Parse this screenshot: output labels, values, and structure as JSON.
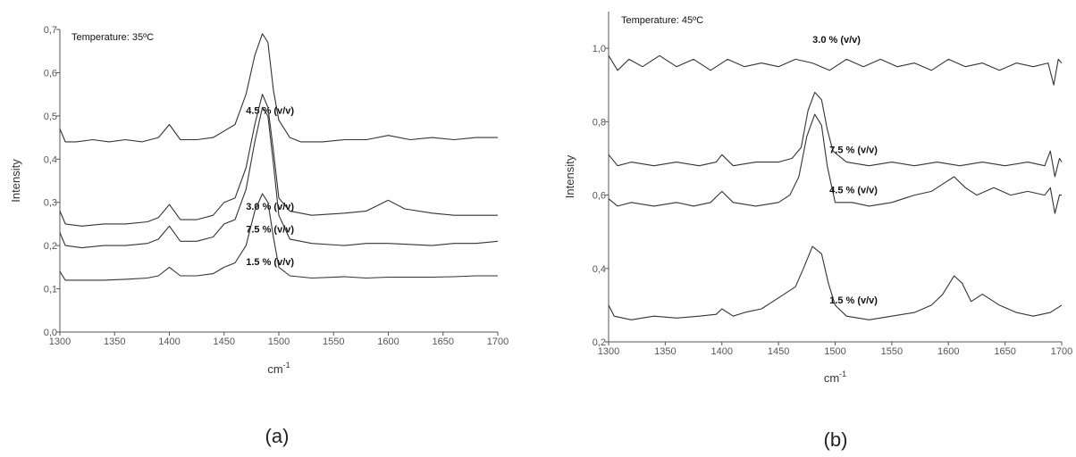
{
  "chart_data": [
    {
      "type": "line",
      "annotation": "Temperature: 35ºC",
      "xlabel": "cm",
      "xlabel_superscript": "-1",
      "ylabel": "Intensity",
      "caption": "(a)",
      "xlim": [
        1300,
        1700
      ],
      "ylim": [
        0.0,
        0.7
      ],
      "xticks": [
        "1300",
        "1350",
        "1400",
        "1450",
        "1500",
        "1550",
        "1600",
        "1650",
        "1700"
      ],
      "yticks": [
        "0,0",
        "0,1",
        "0,2",
        "0,3",
        "0,4",
        "0,5",
        "0,6",
        "0,7"
      ],
      "grid": false,
      "series": [
        {
          "name": "4.5 % (v/v)",
          "label_at": [
            1470,
            0.505
          ],
          "points": [
            [
              1300,
              0.47
            ],
            [
              1305,
              0.44
            ],
            [
              1315,
              0.44
            ],
            [
              1330,
              0.445
            ],
            [
              1345,
              0.44
            ],
            [
              1360,
              0.445
            ],
            [
              1375,
              0.44
            ],
            [
              1390,
              0.45
            ],
            [
              1400,
              0.48
            ],
            [
              1410,
              0.445
            ],
            [
              1425,
              0.445
            ],
            [
              1440,
              0.45
            ],
            [
              1450,
              0.465
            ],
            [
              1460,
              0.48
            ],
            [
              1470,
              0.55
            ],
            [
              1478,
              0.64
            ],
            [
              1485,
              0.69
            ],
            [
              1490,
              0.67
            ],
            [
              1495,
              0.56
            ],
            [
              1500,
              0.49
            ],
            [
              1510,
              0.45
            ],
            [
              1520,
              0.44
            ],
            [
              1540,
              0.44
            ],
            [
              1560,
              0.445
            ],
            [
              1580,
              0.445
            ],
            [
              1600,
              0.455
            ],
            [
              1620,
              0.445
            ],
            [
              1640,
              0.45
            ],
            [
              1660,
              0.445
            ],
            [
              1680,
              0.45
            ],
            [
              1700,
              0.45
            ]
          ]
        },
        {
          "name": "3.0 % (v/v)",
          "label_at": [
            1470,
            0.283
          ],
          "points": [
            [
              1300,
              0.28
            ],
            [
              1305,
              0.25
            ],
            [
              1320,
              0.245
            ],
            [
              1340,
              0.25
            ],
            [
              1360,
              0.25
            ],
            [
              1380,
              0.255
            ],
            [
              1390,
              0.265
            ],
            [
              1400,
              0.295
            ],
            [
              1410,
              0.26
            ],
            [
              1425,
              0.26
            ],
            [
              1440,
              0.27
            ],
            [
              1450,
              0.3
            ],
            [
              1460,
              0.31
            ],
            [
              1470,
              0.38
            ],
            [
              1478,
              0.48
            ],
            [
              1485,
              0.55
            ],
            [
              1490,
              0.52
            ],
            [
              1495,
              0.42
            ],
            [
              1500,
              0.31
            ],
            [
              1510,
              0.28
            ],
            [
              1530,
              0.27
            ],
            [
              1560,
              0.275
            ],
            [
              1580,
              0.28
            ],
            [
              1600,
              0.305
            ],
            [
              1615,
              0.285
            ],
            [
              1640,
              0.275
            ],
            [
              1660,
              0.27
            ],
            [
              1680,
              0.27
            ],
            [
              1700,
              0.27
            ]
          ]
        },
        {
          "name": "7.5 % (v/v)",
          "label_at": [
            1470,
            0.23
          ],
          "points": [
            [
              1300,
              0.23
            ],
            [
              1305,
              0.2
            ],
            [
              1320,
              0.195
            ],
            [
              1340,
              0.2
            ],
            [
              1360,
              0.2
            ],
            [
              1380,
              0.205
            ],
            [
              1390,
              0.215
            ],
            [
              1400,
              0.245
            ],
            [
              1410,
              0.21
            ],
            [
              1425,
              0.21
            ],
            [
              1440,
              0.22
            ],
            [
              1450,
              0.25
            ],
            [
              1460,
              0.26
            ],
            [
              1470,
              0.33
            ],
            [
              1478,
              0.44
            ],
            [
              1485,
              0.52
            ],
            [
              1490,
              0.5
            ],
            [
              1495,
              0.39
            ],
            [
              1500,
              0.27
            ],
            [
              1510,
              0.215
            ],
            [
              1530,
              0.205
            ],
            [
              1560,
              0.2
            ],
            [
              1580,
              0.205
            ],
            [
              1600,
              0.205
            ],
            [
              1640,
              0.2
            ],
            [
              1660,
              0.205
            ],
            [
              1680,
              0.205
            ],
            [
              1700,
              0.21
            ]
          ]
        },
        {
          "name": "1.5 % (v/v)",
          "label_at": [
            1470,
            0.155
          ],
          "points": [
            [
              1300,
              0.14
            ],
            [
              1305,
              0.12
            ],
            [
              1320,
              0.12
            ],
            [
              1340,
              0.12
            ],
            [
              1360,
              0.122
            ],
            [
              1380,
              0.125
            ],
            [
              1390,
              0.13
            ],
            [
              1400,
              0.15
            ],
            [
              1410,
              0.13
            ],
            [
              1425,
              0.13
            ],
            [
              1440,
              0.135
            ],
            [
              1450,
              0.15
            ],
            [
              1460,
              0.16
            ],
            [
              1470,
              0.2
            ],
            [
              1478,
              0.28
            ],
            [
              1485,
              0.32
            ],
            [
              1490,
              0.3
            ],
            [
              1495,
              0.22
            ],
            [
              1500,
              0.15
            ],
            [
              1510,
              0.13
            ],
            [
              1530,
              0.125
            ],
            [
              1560,
              0.128
            ],
            [
              1580,
              0.125
            ],
            [
              1600,
              0.127
            ],
            [
              1640,
              0.127
            ],
            [
              1660,
              0.128
            ],
            [
              1680,
              0.13
            ],
            [
              1700,
              0.13
            ]
          ]
        }
      ]
    },
    {
      "type": "line",
      "annotation": "Temperature: 45ºC",
      "xlabel": "cm",
      "xlabel_superscript": "-1",
      "ylabel": "Intensity",
      "caption": "(b)",
      "xlim": [
        1300,
        1700
      ],
      "ylim": [
        0.2,
        1.1
      ],
      "xticks": [
        "1300",
        "1350",
        "1400",
        "1450",
        "1500",
        "1550",
        "1600",
        "1650",
        "1700"
      ],
      "yticks": [
        "0,2",
        "0,4",
        "0,6",
        "0,8",
        "1,0"
      ],
      "grid": false,
      "series": [
        {
          "name": "3.0 % (v/v)",
          "label_at": [
            1480,
            1.015
          ],
          "points": [
            [
              1300,
              0.98
            ],
            [
              1308,
              0.94
            ],
            [
              1318,
              0.97
            ],
            [
              1330,
              0.95
            ],
            [
              1345,
              0.98
            ],
            [
              1360,
              0.95
            ],
            [
              1375,
              0.97
            ],
            [
              1390,
              0.94
            ],
            [
              1405,
              0.97
            ],
            [
              1420,
              0.95
            ],
            [
              1435,
              0.96
            ],
            [
              1450,
              0.95
            ],
            [
              1465,
              0.97
            ],
            [
              1480,
              0.96
            ],
            [
              1495,
              0.94
            ],
            [
              1510,
              0.97
            ],
            [
              1525,
              0.95
            ],
            [
              1540,
              0.97
            ],
            [
              1555,
              0.95
            ],
            [
              1570,
              0.96
            ],
            [
              1585,
              0.94
            ],
            [
              1600,
              0.97
            ],
            [
              1615,
              0.95
            ],
            [
              1630,
              0.96
            ],
            [
              1645,
              0.94
            ],
            [
              1660,
              0.96
            ],
            [
              1675,
              0.95
            ],
            [
              1688,
              0.96
            ],
            [
              1693,
              0.9
            ],
            [
              1697,
              0.97
            ],
            [
              1700,
              0.96
            ]
          ]
        },
        {
          "name": "7.5 % (v/v)",
          "label_at": [
            1495,
            0.715
          ],
          "points": [
            [
              1300,
              0.71
            ],
            [
              1308,
              0.68
            ],
            [
              1320,
              0.69
            ],
            [
              1340,
              0.68
            ],
            [
              1360,
              0.69
            ],
            [
              1380,
              0.68
            ],
            [
              1395,
              0.69
            ],
            [
              1400,
              0.71
            ],
            [
              1410,
              0.68
            ],
            [
              1430,
              0.69
            ],
            [
              1450,
              0.69
            ],
            [
              1462,
              0.7
            ],
            [
              1470,
              0.73
            ],
            [
              1476,
              0.83
            ],
            [
              1482,
              0.88
            ],
            [
              1488,
              0.86
            ],
            [
              1493,
              0.78
            ],
            [
              1498,
              0.72
            ],
            [
              1510,
              0.69
            ],
            [
              1530,
              0.68
            ],
            [
              1550,
              0.69
            ],
            [
              1570,
              0.68
            ],
            [
              1590,
              0.69
            ],
            [
              1610,
              0.68
            ],
            [
              1630,
              0.69
            ],
            [
              1650,
              0.68
            ],
            [
              1670,
              0.69
            ],
            [
              1685,
              0.68
            ],
            [
              1690,
              0.72
            ],
            [
              1694,
              0.65
            ],
            [
              1698,
              0.7
            ],
            [
              1700,
              0.69
            ]
          ]
        },
        {
          "name": "4.5 % (v/v)",
          "label_at": [
            1495,
            0.605
          ],
          "points": [
            [
              1300,
              0.59
            ],
            [
              1308,
              0.57
            ],
            [
              1320,
              0.58
            ],
            [
              1340,
              0.57
            ],
            [
              1360,
              0.58
            ],
            [
              1375,
              0.57
            ],
            [
              1390,
              0.58
            ],
            [
              1400,
              0.61
            ],
            [
              1410,
              0.58
            ],
            [
              1430,
              0.57
            ],
            [
              1450,
              0.58
            ],
            [
              1460,
              0.6
            ],
            [
              1468,
              0.65
            ],
            [
              1475,
              0.76
            ],
            [
              1482,
              0.82
            ],
            [
              1488,
              0.79
            ],
            [
              1493,
              0.68
            ],
            [
              1500,
              0.58
            ],
            [
              1515,
              0.58
            ],
            [
              1530,
              0.57
            ],
            [
              1550,
              0.58
            ],
            [
              1570,
              0.6
            ],
            [
              1585,
              0.61
            ],
            [
              1595,
              0.63
            ],
            [
              1605,
              0.65
            ],
            [
              1615,
              0.62
            ],
            [
              1625,
              0.6
            ],
            [
              1640,
              0.62
            ],
            [
              1655,
              0.6
            ],
            [
              1670,
              0.61
            ],
            [
              1685,
              0.6
            ],
            [
              1690,
              0.62
            ],
            [
              1694,
              0.55
            ],
            [
              1698,
              0.6
            ],
            [
              1700,
              0.6
            ]
          ]
        },
        {
          "name": "1.5 % (v/v)",
          "label_at": [
            1495,
            0.305
          ],
          "points": [
            [
              1300,
              0.3
            ],
            [
              1305,
              0.27
            ],
            [
              1320,
              0.26
            ],
            [
              1340,
              0.27
            ],
            [
              1360,
              0.265
            ],
            [
              1380,
              0.27
            ],
            [
              1395,
              0.275
            ],
            [
              1400,
              0.29
            ],
            [
              1410,
              0.27
            ],
            [
              1420,
              0.28
            ],
            [
              1435,
              0.29
            ],
            [
              1445,
              0.31
            ],
            [
              1455,
              0.33
            ],
            [
              1465,
              0.35
            ],
            [
              1472,
              0.4
            ],
            [
              1480,
              0.46
            ],
            [
              1488,
              0.44
            ],
            [
              1494,
              0.36
            ],
            [
              1500,
              0.3
            ],
            [
              1510,
              0.27
            ],
            [
              1530,
              0.26
            ],
            [
              1550,
              0.27
            ],
            [
              1570,
              0.28
            ],
            [
              1585,
              0.3
            ],
            [
              1595,
              0.33
            ],
            [
              1605,
              0.38
            ],
            [
              1612,
              0.36
            ],
            [
              1620,
              0.31
            ],
            [
              1630,
              0.33
            ],
            [
              1645,
              0.3
            ],
            [
              1660,
              0.28
            ],
            [
              1675,
              0.27
            ],
            [
              1690,
              0.28
            ],
            [
              1700,
              0.3
            ]
          ]
        }
      ]
    }
  ]
}
